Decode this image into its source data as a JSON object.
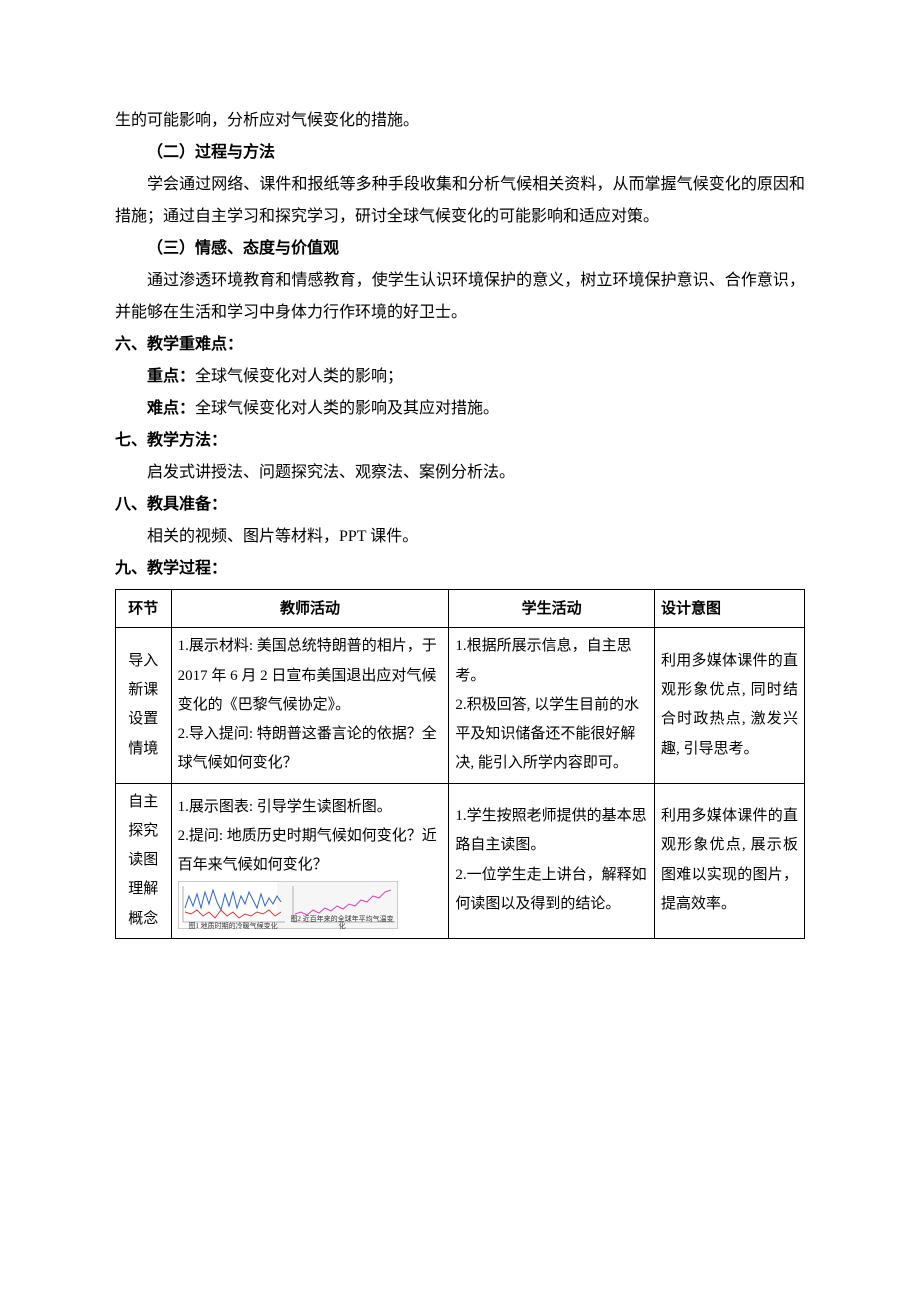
{
  "intro_fragment": "生的可能影响，分析应对气候变化的措施。",
  "section5": {
    "sub2_title": "（二）过程与方法",
    "sub2_body": "学会通过网络、课件和报纸等多种手段收集和分析气候相关资料，从而掌握气候变化的原因和措施；通过自主学习和探究学习，研讨全球气候变化的可能影响和适应对策。",
    "sub3_title": "（三）情感、态度与价值观",
    "sub3_body": "通过渗透环境教育和情感教育，使学生认识环境保护的意义，树立环境保护意识、合作意识，并能够在生活和学习中身体力行作环境的好卫士。"
  },
  "section6": {
    "title": "六、教学重难点：",
    "key_label": "重点：",
    "key_value": "全球气候变化对人类的影响；",
    "diff_label": "难点：",
    "diff_value": "全球气候变化对人类的影响及其应对措施。"
  },
  "section7": {
    "title": "七、教学方法：",
    "body": "启发式讲授法、问题探究法、观察法、案例分析法。"
  },
  "section8": {
    "title": "八、教具准备：",
    "body": "相关的视频、图片等材料，PPT 课件。"
  },
  "section9": {
    "title": "九、教学过程：",
    "headers": [
      "环节",
      "教师活动",
      "学生活动",
      "设计意图"
    ],
    "rows": [
      {
        "stage": "导入新课设置情境",
        "teacher": "1.展示材料: 美国总统特朗普的相片，于 2017 年 6 月 2 日宣布美国退出应对气候变化的《巴黎气候协定》。\n2.导入提问: 特朗普这番言论的依据？全球气候如何变化？",
        "student": "1.根据所展示信息，自主思考。\n2.积极回答, 以学生目前的水平及知识储备还不能很好解决, 能引入所学内容即可。",
        "intent": "利用多媒体课件的直观形象优点, 同时结合时政热点, 激发兴趣, 引导思考。"
      },
      {
        "stage": "自主探究读图理解概念",
        "teacher_lines": [
          "1.展示图表: 引导学生读图析图。",
          "2.提问: 地质历史时期气候如何变化？近百年来气候如何变化？"
        ],
        "student": "1.学生按照老师提供的基本思路自主读图。\n2.一位学生走上讲台，解释如何读图以及得到的结论。",
        "intent": "利用多媒体课件的直观形象优点, 展示板图难以实现的图片，提高效率。"
      }
    ],
    "chart": {
      "left_caption": "图1 地质时期的冷暖气候变化",
      "right_caption": "图2 近百年来的全球年平均气温变化",
      "line1_color": "#2e66c9",
      "line2_color": "#d13a3a",
      "line3_color": "#d940c0",
      "axis_color": "#666666",
      "left_points": [
        [
          2,
          26
        ],
        [
          6,
          14
        ],
        [
          10,
          24
        ],
        [
          14,
          12
        ],
        [
          18,
          26
        ],
        [
          22,
          10
        ],
        [
          26,
          22
        ],
        [
          30,
          8
        ],
        [
          34,
          20
        ],
        [
          38,
          28
        ],
        [
          42,
          12
        ],
        [
          46,
          24
        ],
        [
          50,
          10
        ],
        [
          54,
          26
        ],
        [
          58,
          14
        ],
        [
          62,
          22
        ],
        [
          66,
          10
        ],
        [
          70,
          18
        ],
        [
          74,
          26
        ],
        [
          78,
          12
        ],
        [
          82,
          24
        ],
        [
          86,
          16
        ],
        [
          90,
          22
        ],
        [
          94,
          14
        ],
        [
          98,
          20
        ]
      ],
      "red_points": [
        [
          2,
          30
        ],
        [
          8,
          32
        ],
        [
          14,
          28
        ],
        [
          20,
          34
        ],
        [
          26,
          30
        ],
        [
          32,
          36
        ],
        [
          38,
          28
        ],
        [
          44,
          34
        ],
        [
          50,
          30
        ],
        [
          56,
          36
        ],
        [
          62,
          32
        ],
        [
          68,
          34
        ],
        [
          74,
          30
        ],
        [
          80,
          32
        ],
        [
          86,
          28
        ],
        [
          92,
          34
        ],
        [
          98,
          30
        ]
      ],
      "right_points": [
        [
          2,
          32
        ],
        [
          8,
          30
        ],
        [
          14,
          33
        ],
        [
          20,
          28
        ],
        [
          26,
          31
        ],
        [
          32,
          26
        ],
        [
          38,
          29
        ],
        [
          44,
          24
        ],
        [
          50,
          27
        ],
        [
          56,
          22
        ],
        [
          62,
          24
        ],
        [
          68,
          18
        ],
        [
          74,
          20
        ],
        [
          80,
          14
        ],
        [
          86,
          16
        ],
        [
          92,
          10
        ],
        [
          98,
          8
        ]
      ]
    }
  }
}
